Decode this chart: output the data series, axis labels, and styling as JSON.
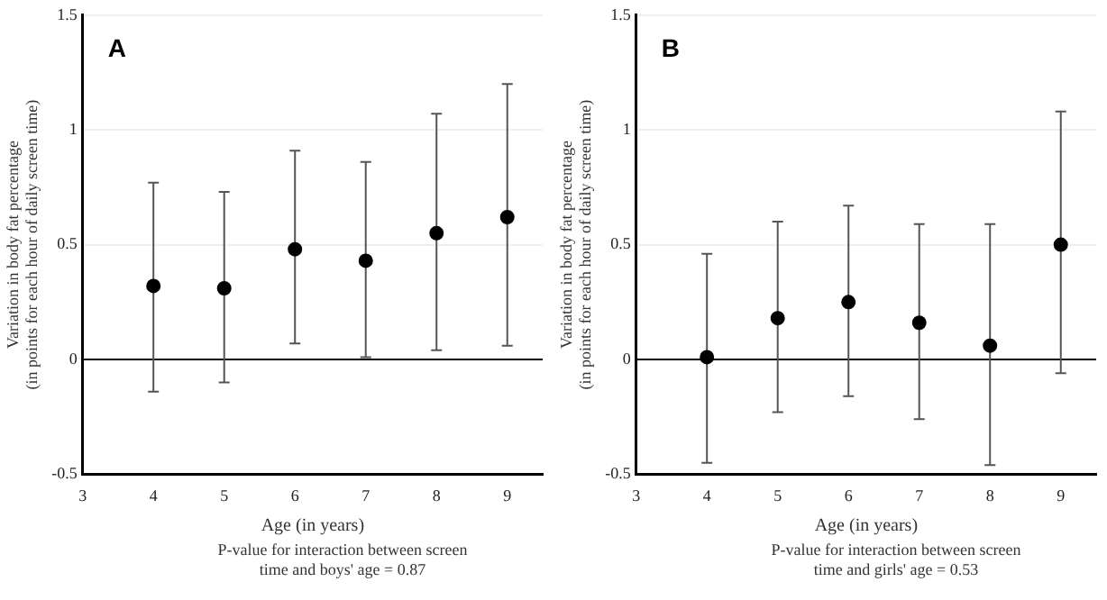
{
  "chart_data": [
    {
      "type": "scatter",
      "annotations": [
        "A",
        "P-value for interaction between screen time and boys' age = 0.87"
      ],
      "xlabel": "Age (in years)",
      "ylabel": "Variation in body fat percentage\n(in points for each hour of daily screen time)",
      "xlim": [
        3,
        9.5
      ],
      "xticks": [
        3,
        4,
        5,
        6,
        7,
        8,
        9
      ],
      "ylim": [
        -0.5,
        1.5
      ],
      "yticks": [
        -0.5,
        0,
        0.5,
        1,
        1.5
      ],
      "grid": "y",
      "marker": "circle",
      "ref_lines": [
        {
          "axis": "y",
          "value": 0,
          "color": "#000000"
        }
      ],
      "series": [
        {
          "color": "#000000",
          "x": [
            4,
            5,
            6,
            7,
            8,
            9
          ],
          "values": [
            0.32,
            0.31,
            0.48,
            0.43,
            0.55,
            0.62
          ],
          "errors": [
            [
              -0.14,
              0.77
            ],
            [
              -0.1,
              0.73
            ],
            [
              0.07,
              0.91
            ],
            [
              0.01,
              0.86
            ],
            [
              0.04,
              1.07
            ],
            [
              0.06,
              1.2
            ]
          ]
        }
      ]
    },
    {
      "type": "scatter",
      "annotations": [
        "B",
        "P-value for interaction between screen time and girls' age = 0.53"
      ],
      "xlabel": "Age (in years)",
      "ylabel": "Variation in body fat percentage\n(in points for each hour of daily screen time)",
      "xlim": [
        3,
        9.5
      ],
      "xticks": [
        3,
        4,
        5,
        6,
        7,
        8,
        9
      ],
      "ylim": [
        -0.5,
        1.5
      ],
      "yticks": [
        -0.5,
        0,
        0.5,
        1,
        1.5
      ],
      "grid": "y",
      "marker": "circle",
      "ref_lines": [
        {
          "axis": "y",
          "value": 0,
          "color": "#000000"
        }
      ],
      "series": [
        {
          "color": "#000000",
          "x": [
            4,
            5,
            6,
            7,
            8,
            9
          ],
          "values": [
            0.01,
            0.18,
            0.25,
            0.16,
            0.06,
            0.5
          ],
          "errors": [
            [
              -0.45,
              0.46
            ],
            [
              -0.23,
              0.6
            ],
            [
              -0.16,
              0.67
            ],
            [
              -0.26,
              0.59
            ],
            [
              -0.46,
              0.59
            ],
            [
              -0.06,
              1.08
            ]
          ]
        }
      ]
    }
  ]
}
